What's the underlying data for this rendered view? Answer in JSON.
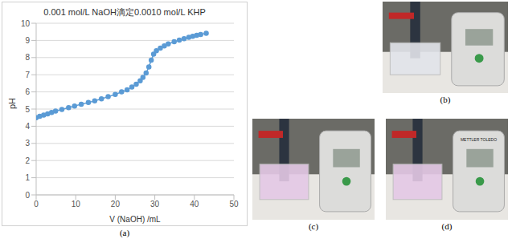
{
  "chart_data": {
    "type": "line",
    "title": "0.001 mol/L NaOH滴定0.0010 mol/L KHP",
    "x_label": "V (NaOH) /mL",
    "y_label": "pH",
    "caption": "(a)",
    "x": [
      0,
      0.9,
      1.9,
      2.9,
      3.9,
      4.9,
      6.5,
      8.2,
      9.7,
      11.4,
      13.2,
      14.8,
      16.5,
      18.2,
      20,
      21.6,
      23,
      24.2,
      25.3,
      26.3,
      27,
      27.8,
      28.5,
      29.1,
      29.7,
      30.4,
      31.4,
      32.4,
      33.4,
      34.9,
      36.2,
      37.4,
      38.6,
      39.6,
      40.6,
      41.6,
      43
    ],
    "values": [
      4.5,
      4.58,
      4.65,
      4.72,
      4.8,
      4.88,
      4.98,
      5.08,
      5.18,
      5.28,
      5.38,
      5.48,
      5.6,
      5.72,
      5.85,
      6.0,
      6.12,
      6.28,
      6.45,
      6.65,
      6.85,
      7.1,
      7.45,
      7.85,
      8.2,
      8.4,
      8.55,
      8.68,
      8.8,
      8.92,
      9.02,
      9.1,
      9.18,
      9.24,
      9.3,
      9.34,
      9.42
    ],
    "color": "#5b9bd5",
    "marker": "circle",
    "line_style": "solid",
    "xlim": [
      0,
      50
    ],
    "xticks": [
      0,
      10,
      20,
      30,
      40,
      50
    ],
    "ylim": [
      0,
      10
    ],
    "yticks": [
      0,
      1,
      2,
      3,
      4,
      5,
      6,
      7,
      8,
      9,
      10
    ],
    "grid": true
  },
  "photos": [
    {
      "caption": "(b)"
    },
    {
      "caption": "(c)"
    },
    {
      "caption": "(d)",
      "text": "METTLER TOLEDO"
    }
  ]
}
